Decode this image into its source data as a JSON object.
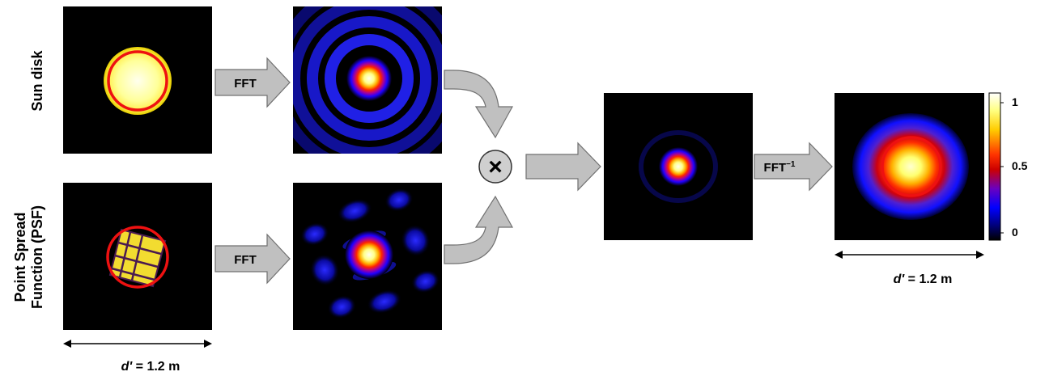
{
  "row_labels": {
    "top": "Sun disk",
    "bottom_line1": "Point Spread",
    "bottom_line2": "Function (PSF)"
  },
  "arrows": {
    "fft_top": "FFT",
    "fft_bottom": "FFT",
    "ifft_base": "FFT",
    "ifft_sup": "−1"
  },
  "dimension": {
    "left": {
      "var": "d'",
      "value": " = 1.2 m"
    },
    "right": {
      "var": "d'",
      "value": " = 1.2 m"
    }
  },
  "colorbar": {
    "ticks": [
      "1",
      "0.5",
      "0"
    ],
    "colors": [
      "#ffffff",
      "#ffff80",
      "#ffcc00",
      "#ff3300",
      "#cc0000",
      "#6a00c0",
      "#0000ff",
      "#00007a",
      "#000000"
    ]
  },
  "operator": {
    "symbol": "×"
  },
  "colors": {
    "arrow_fill": "#c0c0c0",
    "arrow_stroke": "#707070",
    "circle": "#ee1111"
  }
}
